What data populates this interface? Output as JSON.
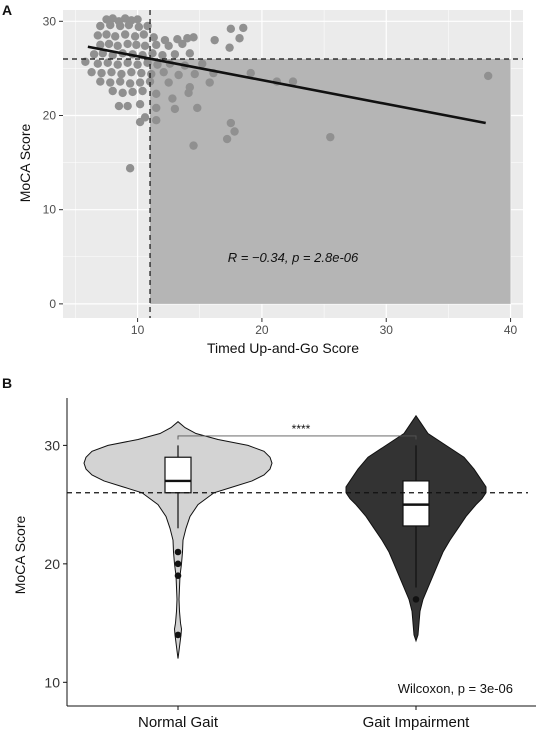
{
  "chart_data": [
    {
      "panel_label": "A",
      "type": "scatter",
      "xlabel": "Timed Up-and-Go Score",
      "ylabel": "MoCA Score",
      "xlim": [
        4,
        41
      ],
      "ylim": [
        -1.5,
        31.2
      ],
      "x_ticks": [
        10,
        20,
        30,
        40
      ],
      "y_ticks": [
        0,
        10,
        20,
        30
      ],
      "grid": true,
      "panel_background": "#ebebeb",
      "shaded_region": {
        "x_from": 11,
        "x_to": 40,
        "y_from": 0,
        "y_to": 26,
        "color": "#b5b5b5"
      },
      "vline_x": 11,
      "hline_y": 26,
      "regression_line": {
        "x": [
          6,
          38
        ],
        "y": [
          27.3,
          19.2
        ]
      },
      "annotation": {
        "r_text": "R = −0.34, ",
        "p_text": "p = 2.8e-06",
        "x": 22.5,
        "y": 5
      },
      "point_color": "#909090",
      "points": [
        [
          7.5,
          30.2
        ],
        [
          8.0,
          30.3
        ],
        [
          8.5,
          30.0
        ],
        [
          9.0,
          30.3
        ],
        [
          9.5,
          30.1
        ],
        [
          10.0,
          30.2
        ],
        [
          7.0,
          29.5
        ],
        [
          7.8,
          29.6
        ],
        [
          8.6,
          29.5
        ],
        [
          9.3,
          29.6
        ],
        [
          10.1,
          29.4
        ],
        [
          10.8,
          29.5
        ],
        [
          6.8,
          28.5
        ],
        [
          7.5,
          28.6
        ],
        [
          8.2,
          28.4
        ],
        [
          9.0,
          28.6
        ],
        [
          9.8,
          28.4
        ],
        [
          10.5,
          28.6
        ],
        [
          11.3,
          28.3
        ],
        [
          12.2,
          28.0
        ],
        [
          13.2,
          28.1
        ],
        [
          14.0,
          28.2
        ],
        [
          14.5,
          28.3
        ],
        [
          16.2,
          28.0
        ],
        [
          7.0,
          27.5
        ],
        [
          7.7,
          27.6
        ],
        [
          8.4,
          27.4
        ],
        [
          9.2,
          27.6
        ],
        [
          9.9,
          27.5
        ],
        [
          10.6,
          27.4
        ],
        [
          11.5,
          27.5
        ],
        [
          12.5,
          27.4
        ],
        [
          13.6,
          27.6
        ],
        [
          17.4,
          27.2
        ],
        [
          6.5,
          26.5
        ],
        [
          7.2,
          26.6
        ],
        [
          8.0,
          26.4
        ],
        [
          8.8,
          26.6
        ],
        [
          9.6,
          26.5
        ],
        [
          10.4,
          26.4
        ],
        [
          11.2,
          26.6
        ],
        [
          12.0,
          26.4
        ],
        [
          13.0,
          26.5
        ],
        [
          14.2,
          26.6
        ],
        [
          5.8,
          25.7
        ],
        [
          6.8,
          25.5
        ],
        [
          7.6,
          25.6
        ],
        [
          8.4,
          25.4
        ],
        [
          9.2,
          25.6
        ],
        [
          10.0,
          25.4
        ],
        [
          10.8,
          25.6
        ],
        [
          11.6,
          25.4
        ],
        [
          12.6,
          25.5
        ],
        [
          13.8,
          25.3
        ],
        [
          15.2,
          25.5
        ],
        [
          6.3,
          24.6
        ],
        [
          7.1,
          24.5
        ],
        [
          7.9,
          24.6
        ],
        [
          8.7,
          24.4
        ],
        [
          9.5,
          24.6
        ],
        [
          10.3,
          24.5
        ],
        [
          11.1,
          24.4
        ],
        [
          12.1,
          24.6
        ],
        [
          13.3,
          24.3
        ],
        [
          14.6,
          24.4
        ],
        [
          16.1,
          24.5
        ],
        [
          19.1,
          24.5
        ],
        [
          7.0,
          23.6
        ],
        [
          7.8,
          23.5
        ],
        [
          8.6,
          23.6
        ],
        [
          9.4,
          23.4
        ],
        [
          10.2,
          23.5
        ],
        [
          11.0,
          23.6
        ],
        [
          12.5,
          23.5
        ],
        [
          14.2,
          23.0
        ],
        [
          15.8,
          23.5
        ],
        [
          21.2,
          23.6
        ],
        [
          8.0,
          22.6
        ],
        [
          8.8,
          22.4
        ],
        [
          9.6,
          22.5
        ],
        [
          10.4,
          22.6
        ],
        [
          11.5,
          22.3
        ],
        [
          12.8,
          21.8
        ],
        [
          14.1,
          22.4
        ],
        [
          8.5,
          21.0
        ],
        [
          9.2,
          21.0
        ],
        [
          10.2,
          21.2
        ],
        [
          11.5,
          20.8
        ],
        [
          13.0,
          20.7
        ],
        [
          14.8,
          20.8
        ],
        [
          10.6,
          19.8
        ],
        [
          11.5,
          19.5
        ],
        [
          17.5,
          19.2
        ],
        [
          10.2,
          19.3
        ],
        [
          17.8,
          18.3
        ],
        [
          17.2,
          17.5
        ],
        [
          14.5,
          16.8
        ],
        [
          9.4,
          14.4
        ],
        [
          17.5,
          29.2
        ],
        [
          18.5,
          29.3
        ],
        [
          18.2,
          28.2
        ],
        [
          25.5,
          17.7
        ],
        [
          38.2,
          24.2
        ],
        [
          22.5,
          23.6
        ]
      ]
    },
    {
      "panel_label": "B",
      "type": "violin",
      "ylabel": "MoCA Score",
      "categories": [
        "Normal Gait",
        "Gait Impairment"
      ],
      "ylim": [
        8.0,
        34.0
      ],
      "y_ticks": [
        10,
        20,
        30
      ],
      "grid": false,
      "hline_y": 26,
      "series": [
        {
          "category": "Normal Gait",
          "fill": "#d3d3d3",
          "box": {
            "min": 23,
            "q1": 26,
            "median": 27,
            "q3": 29,
            "max": 30
          },
          "outliers": [
            21,
            20,
            19,
            14
          ],
          "violin_range": [
            12,
            32
          ]
        },
        {
          "category": "Gait Impairment",
          "fill": "#333333",
          "box": {
            "min": 18,
            "q1": 23.2,
            "median": 25,
            "q3": 27,
            "max": 30
          },
          "outliers": [
            17
          ],
          "violin_range": [
            13.5,
            32.5
          ]
        }
      ],
      "significance": {
        "label": "****",
        "y": 30.8
      },
      "test_text": "Wilcoxon, p = 3e-06"
    }
  ]
}
